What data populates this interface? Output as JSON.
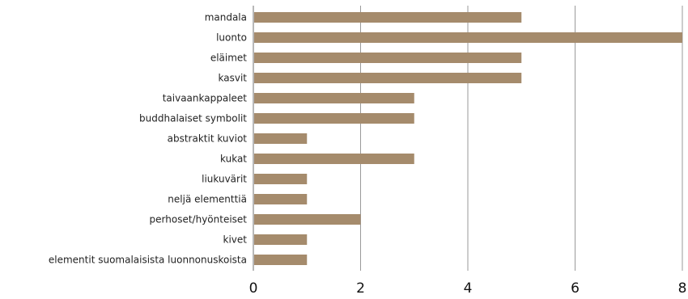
{
  "chart_data": {
    "type": "bar",
    "orientation": "horizontal",
    "categories": [
      "mandala",
      "luonto",
      "eläimet",
      "kasvit",
      "taivaankappaleet",
      "buddhalaiset symbolit",
      "abstraktit kuviot",
      "kukat",
      "liukuvärit",
      "neljä elementtiä",
      "perhoset/hyönteiset",
      "kivet",
      "elementit suomalaisista luonnonuskoista"
    ],
    "values": [
      5,
      8,
      5,
      5,
      3,
      3,
      1,
      3,
      1,
      1,
      2,
      1,
      1
    ],
    "xlim": [
      0,
      8
    ],
    "xticks": [
      "0",
      "2",
      "4",
      "6",
      "8"
    ],
    "grid": "vertical",
    "bar_color": "#a58b6c",
    "axis_color": "#9a9a9a"
  }
}
